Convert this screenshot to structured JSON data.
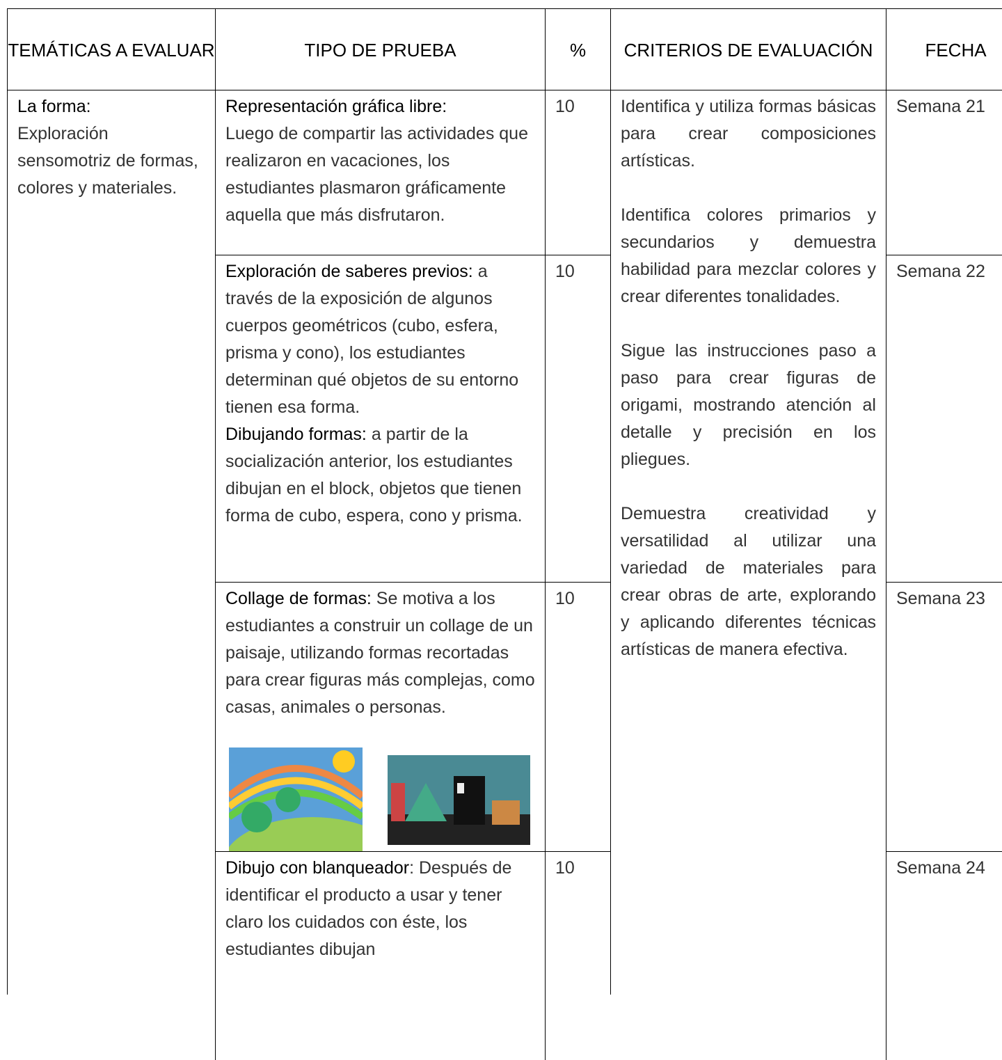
{
  "table": {
    "header": [
      "TEMÁTICAS A EVALUAR",
      "TIPO DE PRUEBA",
      "%",
      "CRITERIOS DE EVALUACIÓN",
      "FECHA"
    ],
    "topic": {
      "label": "La forma:",
      "text": "Exploración sensomotriz de formas, colores y materiales."
    },
    "criteria": [
      "Identifica y utiliza formas básicas para crear composiciones artísticas.",
      "Identifica colores primarios y secundarios y demuestra habilidad para mezclar colores y crear diferentes tonalidades.",
      "Sigue las instrucciones paso a paso para crear figuras de origami, mostrando atención al detalle y precisión en los pliegues.",
      "Demuestra creatividad y versatilidad al utilizar una variedad de materiales para crear obras de arte, explorando y aplicando diferentes técnicas artísticas de manera efectiva."
    ],
    "rows": [
      {
        "items": [
          {
            "label": "Representación gráfica libre:",
            "text": "Luego de compartir las actividades que realizaron en vacaciones, los estudiantes plasmaron gráficamente aquella que más disfrutaron."
          }
        ],
        "percent": 10,
        "date": "Semana 21"
      },
      {
        "items": [
          {
            "label": "Exploración de saberes previos:",
            "text": "a través de la exposición de algunos cuerpos geométricos (cubo, esfera, prisma y cono), los estudiantes determinan qué objetos de su entorno tienen esa forma."
          },
          {
            "label": "Dibujando formas:",
            "text": "a partir de la socialización anterior, los estudiantes dibujan en el block, objetos que tienen forma de cubo, espera, cono y prisma."
          }
        ],
        "percent": 10,
        "date": "Semana 22"
      },
      {
        "items": [
          {
            "label": "Collage de formas:",
            "text": "Se motiva a los estudiantes a construir un collage de un paisaje, utilizando formas recortadas para crear figuras más complejas, como casas, animales o personas."
          }
        ],
        "percent": 10,
        "date": "Semana 23"
      },
      {
        "items": [
          {
            "label": "Dibujo con blanqueador",
            "text": ": Después de identificar el producto a usar y tener claro los cuidados con éste, los estudiantes dibujan"
          }
        ],
        "percent": 10,
        "date": "Semana 24"
      }
    ]
  }
}
